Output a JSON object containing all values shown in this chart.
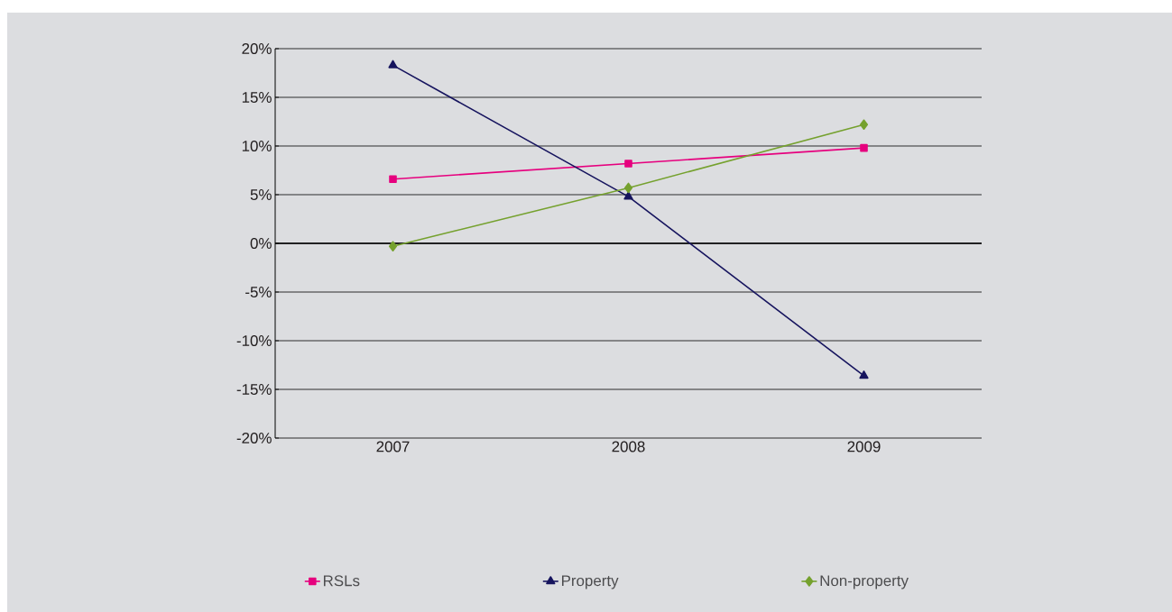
{
  "chart_data": {
    "type": "line",
    "categories": [
      "2007",
      "2008",
      "2009"
    ],
    "series": [
      {
        "name": "RSLs",
        "color": "#e6007e",
        "marker": "square",
        "values": [
          6.6,
          8.2,
          9.8
        ]
      },
      {
        "name": "Property",
        "color": "#16145e",
        "marker": "triangle",
        "values": [
          18.3,
          4.8,
          -13.6
        ]
      },
      {
        "name": "Non-property",
        "color": "#75a12e",
        "marker": "diamond",
        "values": [
          -0.3,
          5.7,
          12.2
        ]
      }
    ],
    "ylim": [
      -20,
      20
    ],
    "yticks": [
      {
        "value": -20,
        "label": "-20%"
      },
      {
        "value": -15,
        "label": "-15%"
      },
      {
        "value": -10,
        "label": "-10%"
      },
      {
        "value": -5,
        "label": "-5%"
      },
      {
        "value": 0,
        "label": "0%"
      },
      {
        "value": 5,
        "label": "5%"
      },
      {
        "value": 10,
        "label": "10%"
      },
      {
        "value": 15,
        "label": "15%"
      },
      {
        "value": 20,
        "label": "20%"
      }
    ],
    "grid": "y",
    "legend": "bottom",
    "line_style": "solid"
  }
}
